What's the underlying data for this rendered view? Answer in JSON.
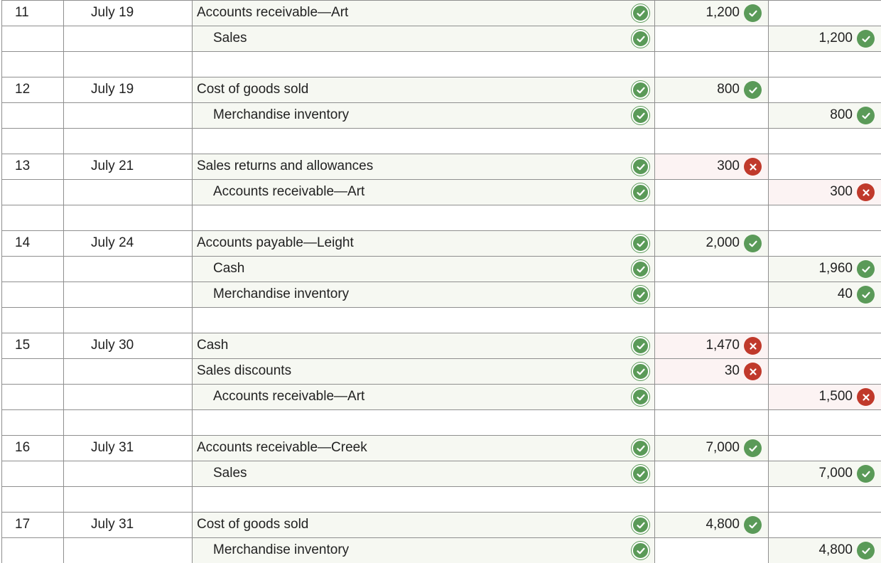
{
  "colors": {
    "check": "#5a9a58",
    "cross": "#c0392b",
    "grid": "#8f8f8f",
    "row_tint": "#f6f8f2",
    "error_tint": "#fcf3f3"
  },
  "rows": [
    {
      "num": "11",
      "date": "July 19",
      "account": "Accounts receivable—Art",
      "side": "debit",
      "debit": "1,200",
      "credit": "",
      "result": "correct"
    },
    {
      "num": "",
      "date": "",
      "account": "Sales",
      "side": "credit",
      "debit": "",
      "credit": "1,200",
      "result": "correct"
    },
    {
      "num": "",
      "date": "",
      "account": "",
      "side": "blank",
      "debit": "",
      "credit": "",
      "result": ""
    },
    {
      "num": "12",
      "date": "July 19",
      "account": "Cost of goods sold",
      "side": "debit",
      "debit": "800",
      "credit": "",
      "result": "correct"
    },
    {
      "num": "",
      "date": "",
      "account": "Merchandise inventory",
      "side": "credit",
      "debit": "",
      "credit": "800",
      "result": "correct"
    },
    {
      "num": "",
      "date": "",
      "account": "",
      "side": "blank",
      "debit": "",
      "credit": "",
      "result": ""
    },
    {
      "num": "13",
      "date": "July 21",
      "account": "Sales returns and allowances",
      "side": "debit",
      "debit": "300",
      "credit": "",
      "result": "incorrect"
    },
    {
      "num": "",
      "date": "",
      "account": "Accounts receivable—Art",
      "side": "credit",
      "debit": "",
      "credit": "300",
      "result": "incorrect"
    },
    {
      "num": "",
      "date": "",
      "account": "",
      "side": "blank",
      "debit": "",
      "credit": "",
      "result": ""
    },
    {
      "num": "14",
      "date": "July 24",
      "account": "Accounts payable—Leight",
      "side": "debit",
      "debit": "2,000",
      "credit": "",
      "result": "correct"
    },
    {
      "num": "",
      "date": "",
      "account": "Cash",
      "side": "credit",
      "debit": "",
      "credit": "1,960",
      "result": "correct"
    },
    {
      "num": "",
      "date": "",
      "account": "Merchandise inventory",
      "side": "credit",
      "debit": "",
      "credit": "40",
      "result": "correct"
    },
    {
      "num": "",
      "date": "",
      "account": "",
      "side": "blank",
      "debit": "",
      "credit": "",
      "result": ""
    },
    {
      "num": "15",
      "date": "July 30",
      "account": "Cash",
      "side": "debit",
      "debit": "1,470",
      "credit": "",
      "result": "incorrect"
    },
    {
      "num": "",
      "date": "",
      "account": "Sales discounts",
      "side": "debit",
      "debit": "30",
      "credit": "",
      "result": "incorrect"
    },
    {
      "num": "",
      "date": "",
      "account": "Accounts receivable—Art",
      "side": "credit",
      "debit": "",
      "credit": "1,500",
      "result": "incorrect"
    },
    {
      "num": "",
      "date": "",
      "account": "",
      "side": "blank",
      "debit": "",
      "credit": "",
      "result": ""
    },
    {
      "num": "16",
      "date": "July 31",
      "account": "Accounts receivable—Creek",
      "side": "debit",
      "debit": "7,000",
      "credit": "",
      "result": "correct"
    },
    {
      "num": "",
      "date": "",
      "account": "Sales",
      "side": "credit",
      "debit": "",
      "credit": "7,000",
      "result": "correct"
    },
    {
      "num": "",
      "date": "",
      "account": "",
      "side": "blank",
      "debit": "",
      "credit": "",
      "result": ""
    },
    {
      "num": "17",
      "date": "July 31",
      "account": "Cost of goods sold",
      "side": "debit",
      "debit": "4,800",
      "credit": "",
      "result": "correct"
    },
    {
      "num": "",
      "date": "",
      "account": "Merchandise inventory",
      "side": "credit",
      "debit": "",
      "credit": "4,800",
      "result": "correct"
    }
  ]
}
